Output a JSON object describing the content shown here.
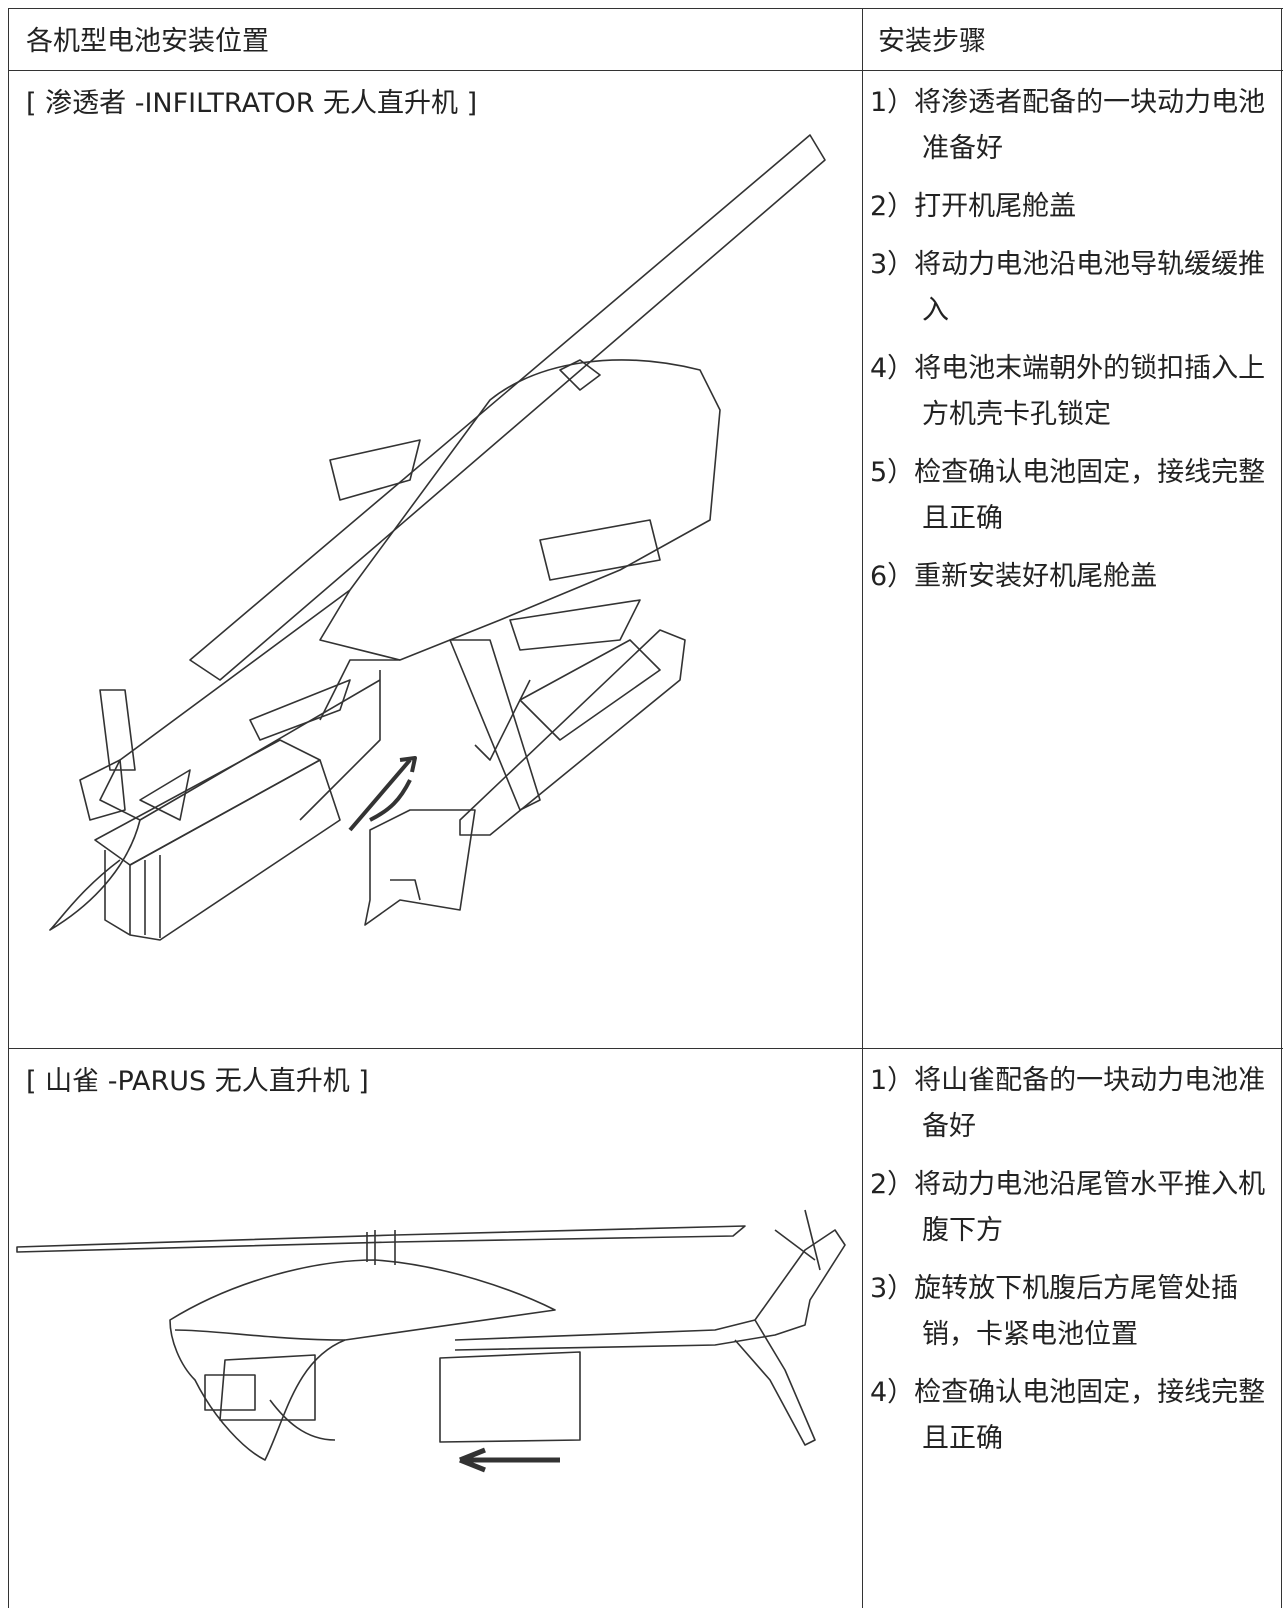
{
  "table": {
    "header": [
      "各机型电池安装位置",
      "安装步骤"
    ],
    "rows": [
      {
        "title": "[ 渗透者 -INFILTRATOR 无人直升机 ]",
        "steps": [
          "1）将渗透者配备的一块动力电池准备好",
          "2）打开机尾舱盖",
          "3）将动力电池沿电池导轨缓缓推入",
          "4）将电池末端朝外的锁扣插入上方机壳卡孔锁定",
          "5）检查确认电池固定，接线完整且正确",
          "6）重新安装好机尾舱盖"
        ]
      },
      {
        "title": "[ 山雀 -PARUS 无人直升机 ]",
        "steps": [
          "1）将山雀配备的一块动力电池准备好",
          "2）将动力电池沿尾管水平推入机腹下方",
          "3）旋转放下机腹后方尾管处插销，卡紧电池位置",
          "4）检查确认电池固定，接线完整且正确"
        ]
      }
    ]
  }
}
